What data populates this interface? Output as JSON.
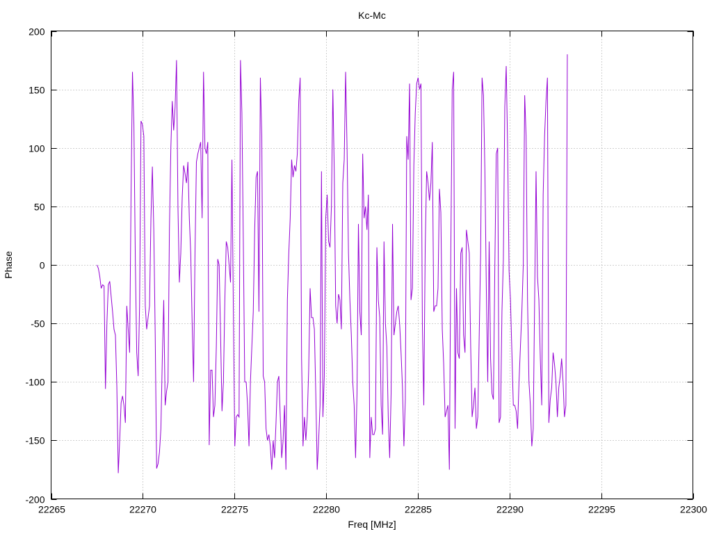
{
  "chart_data": {
    "type": "line",
    "title": "Kc-Mc",
    "xlabel": "Freq [MHz]",
    "ylabel": "Phase",
    "xlim": [
      22265,
      22300
    ],
    "ylim": [
      -200,
      200
    ],
    "xticks": [
      22265,
      22270,
      22275,
      22280,
      22285,
      22290,
      22295,
      22300
    ],
    "yticks": [
      -200,
      -150,
      -100,
      -50,
      0,
      50,
      100,
      150,
      200
    ],
    "grid": true,
    "legend": "none",
    "series": [
      {
        "color": "#9400d3",
        "x_start": 22267.5,
        "x_step": 0.0775,
        "values": [
          0,
          -3,
          -10,
          -20,
          -17,
          -18,
          -106,
          -50,
          -17,
          -14,
          -27,
          -40,
          -55,
          -60,
          -104,
          -178,
          -150,
          -118,
          -112,
          -120,
          -135,
          -35,
          -55,
          -75,
          60,
          165,
          120,
          5,
          -75,
          -95,
          -35,
          123,
          120,
          110,
          -35,
          -55,
          -45,
          -35,
          40,
          84,
          30,
          -60,
          -174,
          -170,
          -160,
          -140,
          -80,
          -30,
          -120,
          -108,
          -100,
          30,
          100,
          140,
          115,
          135,
          175,
          50,
          -15,
          10,
          58,
          85,
          78,
          70,
          88,
          40,
          10,
          -50,
          -100,
          10,
          88,
          95,
          100,
          105,
          40,
          165,
          100,
          95,
          105,
          -154,
          -90,
          -90,
          -130,
          -120,
          -70,
          5,
          0,
          -60,
          -125,
          -100,
          -30,
          20,
          15,
          0,
          -15,
          90,
          -40,
          -155,
          -130,
          -128,
          -130,
          175,
          130,
          20,
          -100,
          -100,
          -120,
          -155,
          -100,
          -70,
          -40,
          30,
          75,
          80,
          -40,
          160,
          110,
          -95,
          -100,
          -140,
          -150,
          -145,
          -155,
          -175,
          -150,
          -165,
          -135,
          -100,
          -95,
          -130,
          -165,
          -150,
          -120,
          -175,
          -30,
          10,
          40,
          90,
          75,
          85,
          80,
          95,
          140,
          160,
          -80,
          -155,
          -130,
          -150,
          -130,
          -90,
          -20,
          -45,
          -45,
          -55,
          -110,
          -175,
          -150,
          -120,
          80,
          -130,
          -95,
          40,
          60,
          20,
          15,
          50,
          150,
          80,
          -35,
          -50,
          -25,
          -30,
          -55,
          70,
          90,
          165,
          100,
          10,
          -30,
          -60,
          -100,
          -120,
          -165,
          -110,
          35,
          -40,
          -60,
          95,
          40,
          50,
          30,
          60,
          -165,
          -130,
          -145,
          -145,
          -140,
          15,
          -30,
          -45,
          -120,
          -145,
          20,
          -50,
          -70,
          -130,
          -165,
          -110,
          35,
          -60,
          -50,
          -40,
          -35,
          -50,
          -75,
          -105,
          -155,
          -115,
          110,
          90,
          155,
          -30,
          -20,
          85,
          130,
          155,
          160,
          150,
          155,
          -50,
          -120,
          15,
          80,
          70,
          55,
          70,
          105,
          -40,
          -35,
          -35,
          -20,
          65,
          45,
          -55,
          -85,
          -130,
          -125,
          -120,
          -175,
          10,
          150,
          165,
          -140,
          -20,
          -75,
          -80,
          10,
          15,
          -60,
          -75,
          30,
          20,
          10,
          -70,
          -130,
          -120,
          -105,
          -140,
          -130,
          -60,
          10,
          160,
          145,
          80,
          -20,
          -100,
          20,
          -80,
          -110,
          -115,
          0,
          95,
          100,
          -135,
          -130,
          -40,
          5,
          135,
          170,
          100,
          -5,
          -30,
          -75,
          -120,
          -120,
          -125,
          -140,
          -100,
          -70,
          -40,
          0,
          145,
          110,
          -30,
          -100,
          -120,
          -155,
          -140,
          -30,
          80,
          -10,
          -30,
          -80,
          -120,
          60,
          110,
          140,
          160,
          -135,
          -115,
          -105,
          -75,
          -85,
          -100,
          -130,
          -105,
          -95,
          -80,
          -100,
          -130,
          -120,
          180
        ]
      }
    ]
  }
}
